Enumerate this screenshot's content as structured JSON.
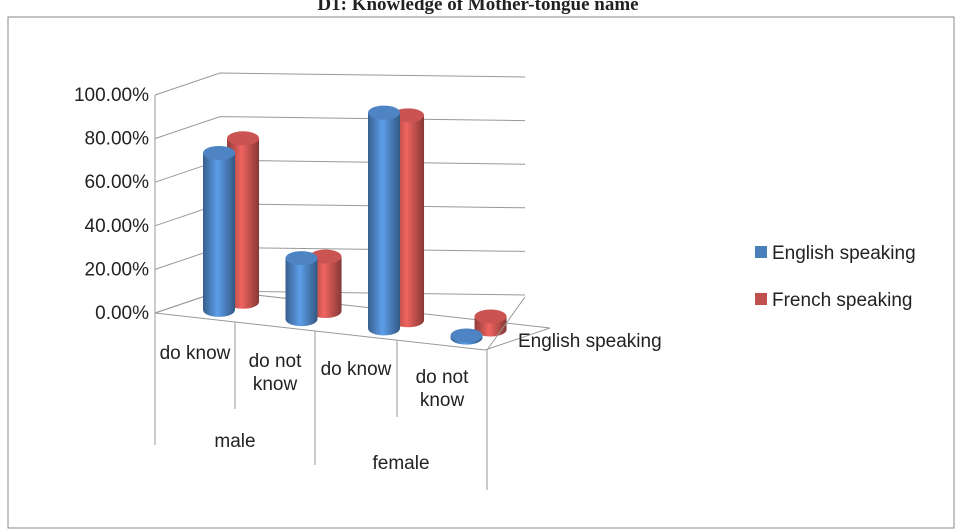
{
  "chart_data": {
    "type": "bar3d",
    "title": "D1: Knowledge of Mother-tongue name",
    "categories": [
      "do know",
      "do not know",
      "do know",
      "do not know"
    ],
    "groups": [
      {
        "name": "male",
        "span": 2
      },
      {
        "name": "female",
        "span": 2
      }
    ],
    "depth_label": "English speaking",
    "series": [
      {
        "name": "English speaking",
        "color": "#4a7ebb",
        "values": [
          72,
          28,
          99,
          1
        ]
      },
      {
        "name": "French speaking",
        "color": "#c0504d",
        "values": [
          75,
          25,
          94,
          6
        ]
      }
    ],
    "ylim": [
      0,
      100
    ],
    "yticks": [
      {
        "value": 0,
        "label": "0.00%"
      },
      {
        "value": 20,
        "label": "20.00%"
      },
      {
        "value": 40,
        "label": "40.00%"
      },
      {
        "value": 60,
        "label": "60.00%"
      },
      {
        "value": 80,
        "label": "80.00%"
      },
      {
        "value": 100,
        "label": "100.00%"
      }
    ],
    "grid": true,
    "legend": "right"
  }
}
